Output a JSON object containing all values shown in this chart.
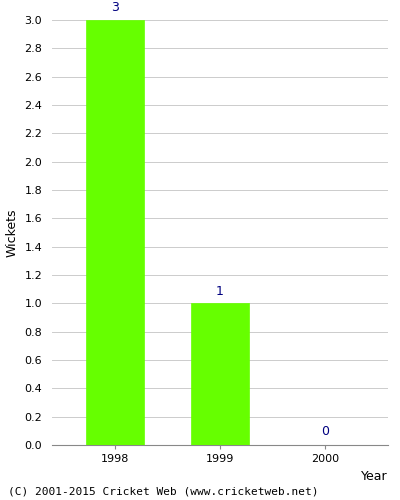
{
  "categories": [
    "1998",
    "1999",
    "2000"
  ],
  "values": [
    3,
    1,
    0
  ],
  "bar_color": "#66ff00",
  "bar_edge_color": "#66ff00",
  "title": "",
  "xlabel": "Year",
  "ylabel": "Wickets",
  "ylim": [
    0.0,
    3.0
  ],
  "yticks": [
    0.0,
    0.2,
    0.4,
    0.6,
    0.8,
    1.0,
    1.2,
    1.4,
    1.6,
    1.8,
    2.0,
    2.2,
    2.4,
    2.6,
    2.8,
    3.0
  ],
  "annotation_color": "#000080",
  "annotation_fontsize": 9,
  "label_fontsize": 9,
  "tick_fontsize": 8,
  "footer": "(C) 2001-2015 Cricket Web (www.cricketweb.net)",
  "footer_fontsize": 8,
  "background_color": "#ffffff",
  "axes_background_color": "#ffffff",
  "grid_color": "#cccccc",
  "bar_width": 0.55
}
